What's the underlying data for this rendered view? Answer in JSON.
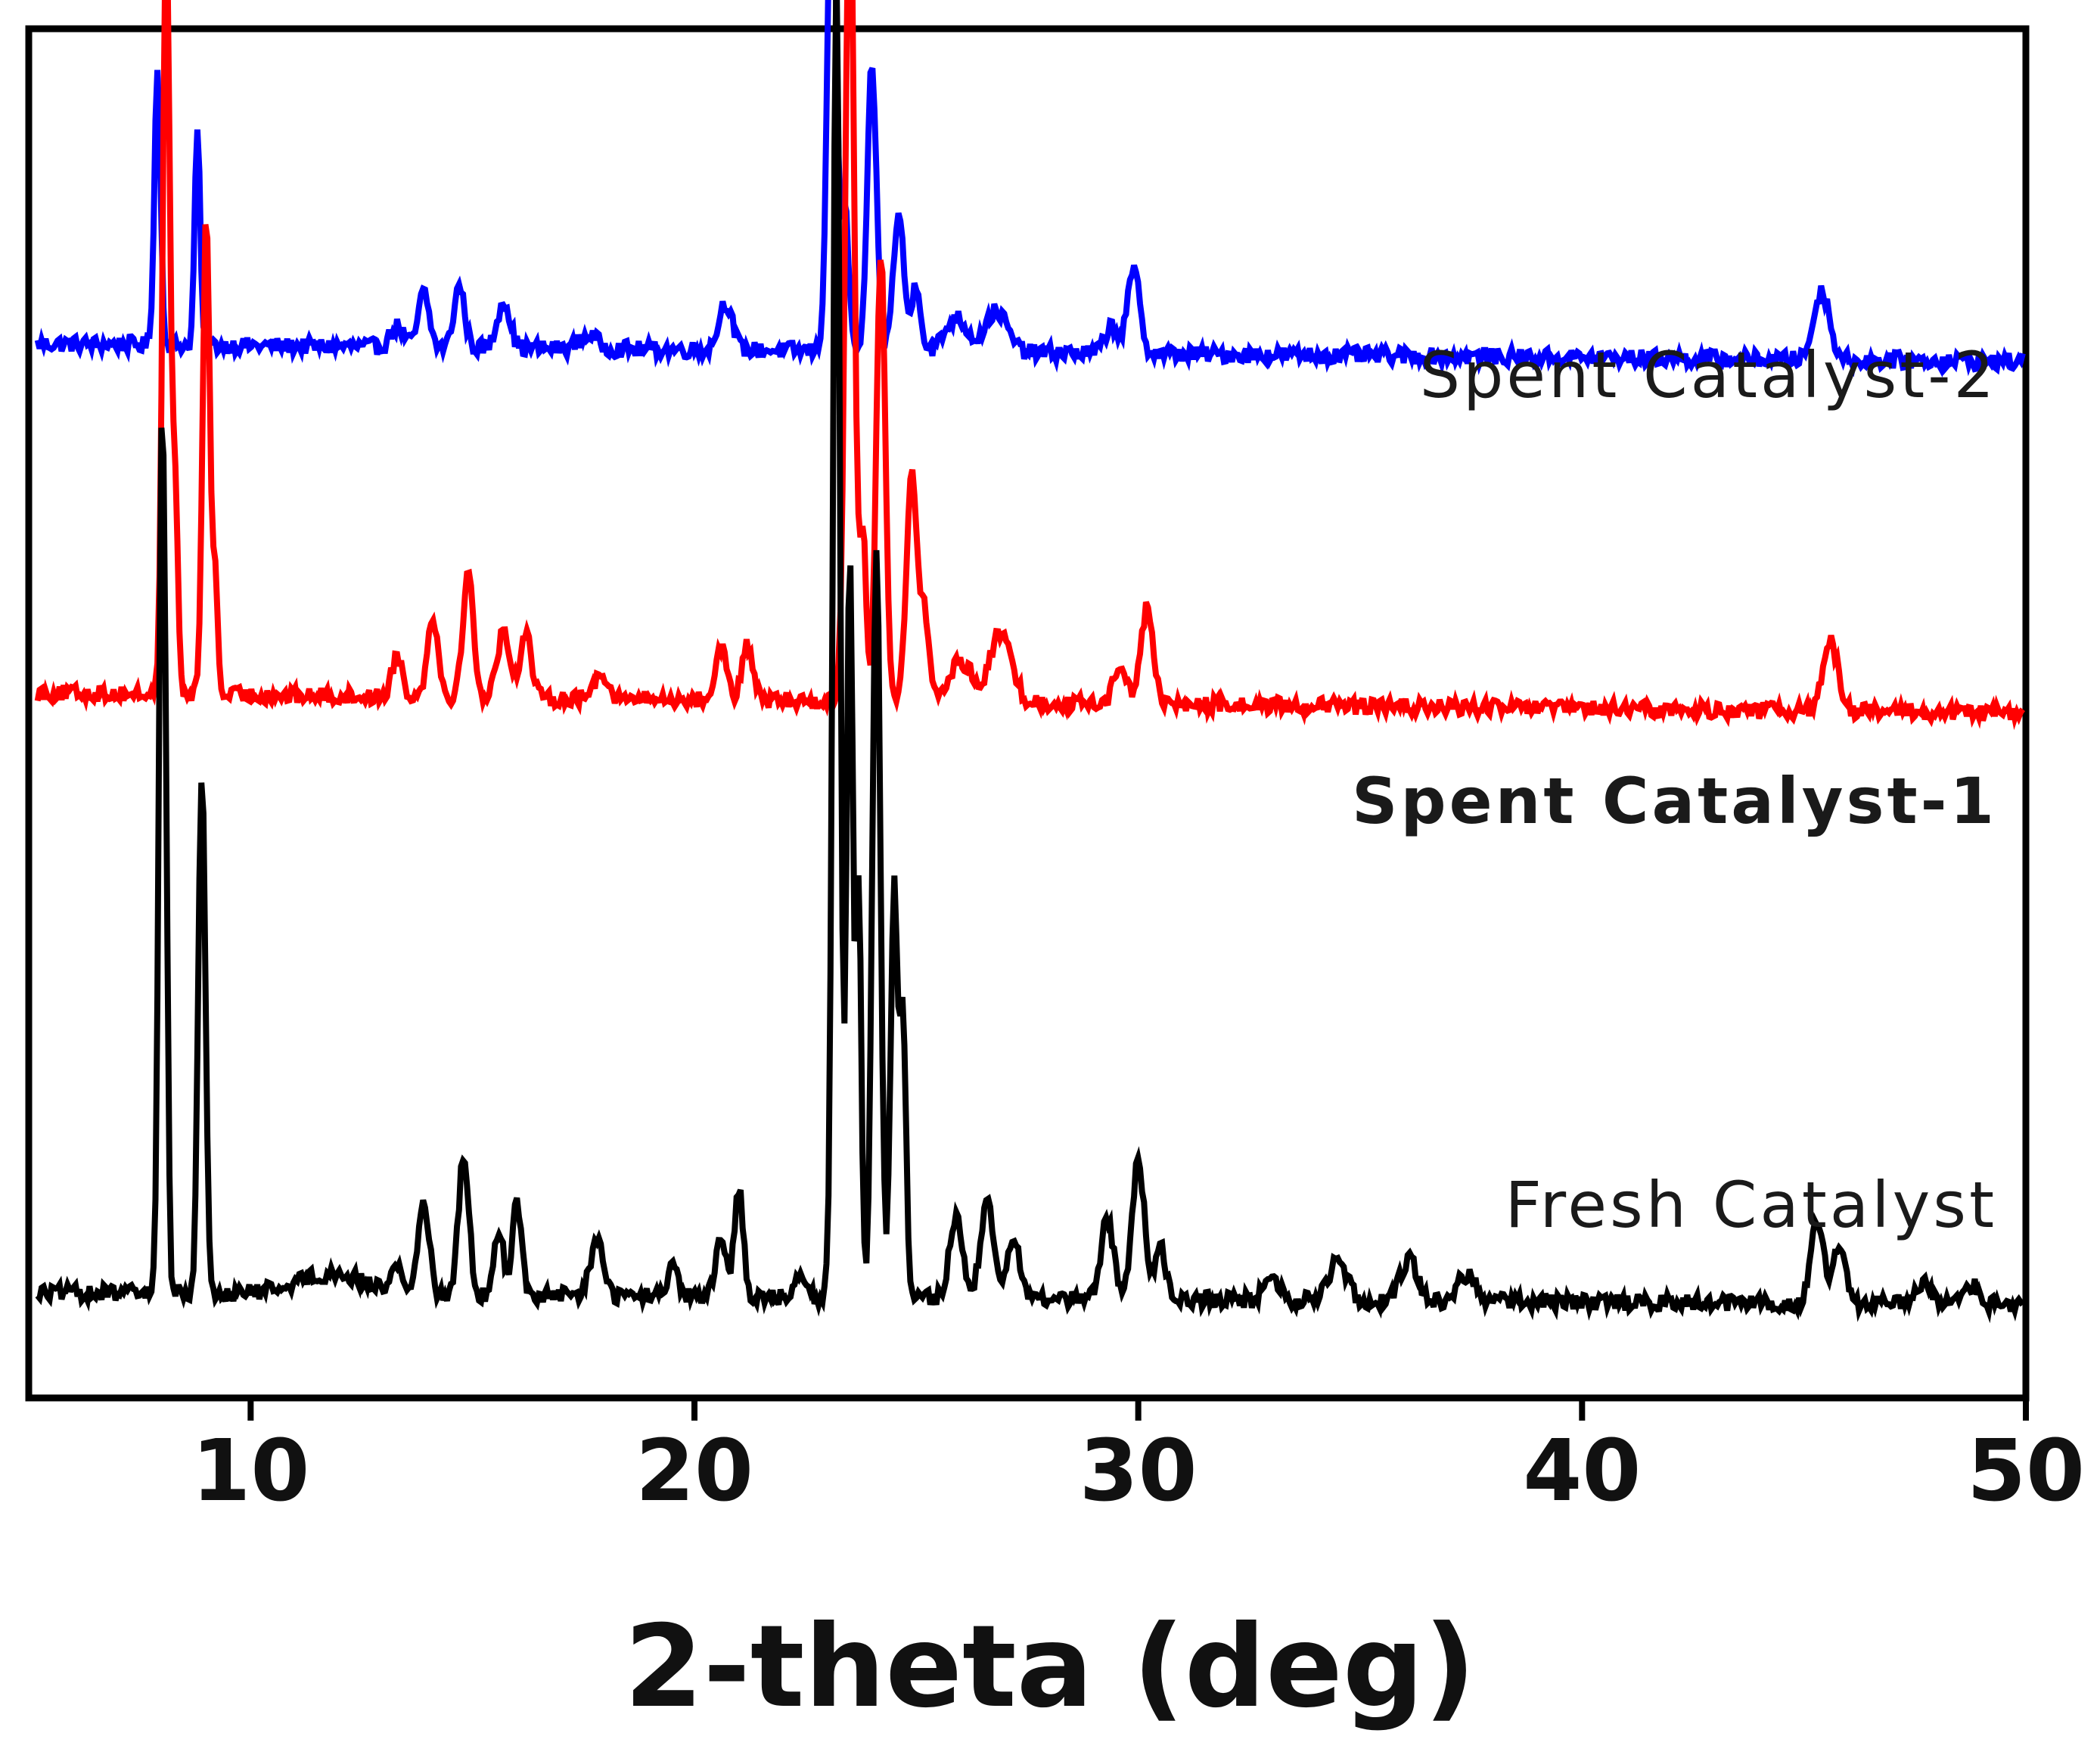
{
  "chart_data": {
    "type": "line",
    "title": "",
    "xlabel": "2-theta (deg)",
    "ylabel": "",
    "xlim": [
      5,
      50
    ],
    "xticks": [
      10,
      20,
      30,
      40,
      50
    ],
    "xtick_labels": [
      "10",
      "20",
      "30",
      "40",
      "50"
    ],
    "y_axis_units": "arbitrary intensity, curves vertically offset",
    "grid": false,
    "legend": "none (series labelled directly at right)",
    "colors": {
      "axis": "#000000",
      "fresh": "#000000",
      "spent1": "#ff0000",
      "spent2": "#0000ff"
    },
    "series": [
      {
        "name": "Spent Catalyst-2",
        "label": "Spent Catalyst-2",
        "color": "#0000ff",
        "bold_label": false,
        "baseline_start": 0.77,
        "baseline_end": 0.757,
        "peaks": [
          [
            7.9,
            0.07,
            0.2
          ],
          [
            8.8,
            0.06,
            0.16
          ],
          [
            13.3,
            0.15,
            0.015
          ],
          [
            13.9,
            0.12,
            0.04
          ],
          [
            14.7,
            0.12,
            0.045
          ],
          [
            15.7,
            0.14,
            0.035
          ],
          [
            17.6,
            0.2,
            0.01
          ],
          [
            20.7,
            0.15,
            0.035
          ],
          [
            23.1,
            0.1,
            0.38
          ],
          [
            23.4,
            0.08,
            0.1
          ],
          [
            24.0,
            0.1,
            0.21
          ],
          [
            24.6,
            0.12,
            0.1
          ],
          [
            25.0,
            0.1,
            0.05
          ],
          [
            25.9,
            0.25,
            0.025
          ],
          [
            26.8,
            0.25,
            0.03
          ],
          [
            29.4,
            0.15,
            0.02
          ],
          [
            29.9,
            0.14,
            0.06
          ],
          [
            45.4,
            0.18,
            0.05
          ]
        ]
      },
      {
        "name": "Spent Catalyst-1",
        "label": "Spent Catalyst-1",
        "color": "#ff0000",
        "bold_label": true,
        "baseline_start": 0.515,
        "baseline_end": 0.5,
        "peaks": [
          [
            8.1,
            0.08,
            0.57
          ],
          [
            8.3,
            0.06,
            0.15
          ],
          [
            9.0,
            0.08,
            0.35
          ],
          [
            9.2,
            0.06,
            0.08
          ],
          [
            13.3,
            0.12,
            0.03
          ],
          [
            14.1,
            0.12,
            0.06
          ],
          [
            14.9,
            0.12,
            0.09
          ],
          [
            15.7,
            0.14,
            0.05
          ],
          [
            16.2,
            0.12,
            0.05
          ],
          [
            17.9,
            0.15,
            0.02
          ],
          [
            20.6,
            0.12,
            0.04
          ],
          [
            21.2,
            0.12,
            0.04
          ],
          [
            23.5,
            0.1,
            0.62
          ],
          [
            23.8,
            0.07,
            0.12
          ],
          [
            24.2,
            0.1,
            0.33
          ],
          [
            24.9,
            0.12,
            0.17
          ],
          [
            25.2,
            0.1,
            0.06
          ],
          [
            26.0,
            0.25,
            0.03
          ],
          [
            26.9,
            0.25,
            0.05
          ],
          [
            29.6,
            0.15,
            0.03
          ],
          [
            30.2,
            0.14,
            0.07
          ],
          [
            45.6,
            0.18,
            0.05
          ]
        ]
      },
      {
        "name": "Fresh Catalyst",
        "label": "Fresh Catalyst",
        "color": "#000000",
        "bold_label": false,
        "baseline_start": 0.077,
        "baseline_end": 0.068,
        "peaks": [
          [
            8.0,
            0.07,
            0.62
          ],
          [
            8.1,
            0.05,
            0.15
          ],
          [
            8.9,
            0.08,
            0.38
          ],
          [
            11.8,
            0.8,
            0.015
          ],
          [
            13.3,
            0.12,
            0.02
          ],
          [
            13.9,
            0.12,
            0.07
          ],
          [
            14.8,
            0.12,
            0.1
          ],
          [
            15.6,
            0.1,
            0.05
          ],
          [
            16.0,
            0.1,
            0.07
          ],
          [
            17.8,
            0.15,
            0.04
          ],
          [
            19.5,
            0.12,
            0.02
          ],
          [
            20.6,
            0.12,
            0.04
          ],
          [
            21.0,
            0.1,
            0.08
          ],
          [
            22.4,
            0.12,
            0.02
          ],
          [
            23.2,
            0.08,
            0.98
          ],
          [
            23.5,
            0.07,
            0.55
          ],
          [
            23.7,
            0.06,
            0.3
          ],
          [
            24.1,
            0.09,
            0.55
          ],
          [
            24.5,
            0.08,
            0.3
          ],
          [
            24.7,
            0.07,
            0.2
          ],
          [
            25.9,
            0.15,
            0.06
          ],
          [
            26.6,
            0.15,
            0.07
          ],
          [
            27.2,
            0.15,
            0.04
          ],
          [
            29.3,
            0.14,
            0.06
          ],
          [
            30.0,
            0.14,
            0.1
          ],
          [
            30.5,
            0.12,
            0.04
          ],
          [
            33.0,
            0.15,
            0.02
          ],
          [
            34.5,
            0.2,
            0.03
          ],
          [
            36.1,
            0.2,
            0.03
          ],
          [
            37.4,
            0.2,
            0.02
          ],
          [
            45.3,
            0.14,
            0.06
          ],
          [
            45.8,
            0.14,
            0.04
          ],
          [
            47.7,
            0.15,
            0.015
          ],
          [
            48.8,
            0.15,
            0.015
          ]
        ]
      }
    ]
  }
}
